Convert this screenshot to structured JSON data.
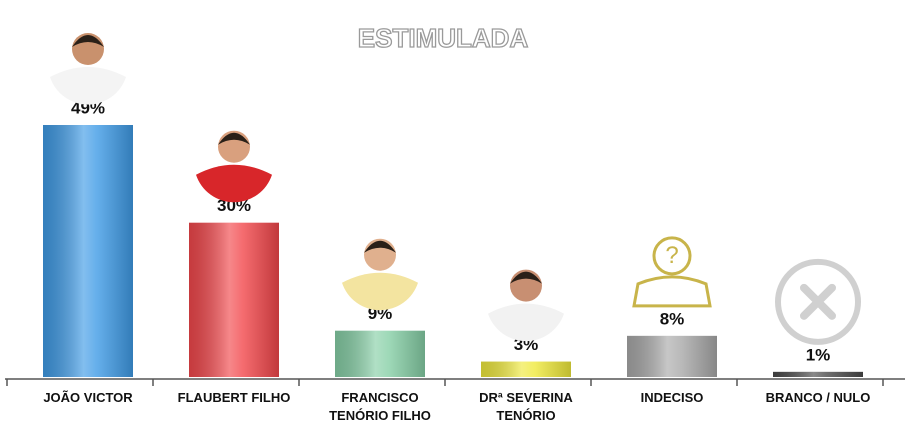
{
  "chart_data": {
    "type": "bar",
    "title": "ESTIMULADA",
    "categories": [
      "JOÃO VICTOR",
      "FLAUBERT FILHO",
      "FRANCISCO TENÓRIO FILHO",
      "DRª SEVERINA TENÓRIO",
      "INDECISO",
      "BRANCO / NULO"
    ],
    "values": [
      49,
      30,
      9,
      3,
      8,
      1
    ],
    "value_labels": [
      "49%",
      "30%",
      "9%",
      "3%",
      "8%",
      "1%"
    ],
    "colors": [
      "#3f9be6",
      "#f2474b",
      "#86cfa6",
      "#efe93c",
      "#a9a9a9",
      "#4a4a4a"
    ]
  }
}
